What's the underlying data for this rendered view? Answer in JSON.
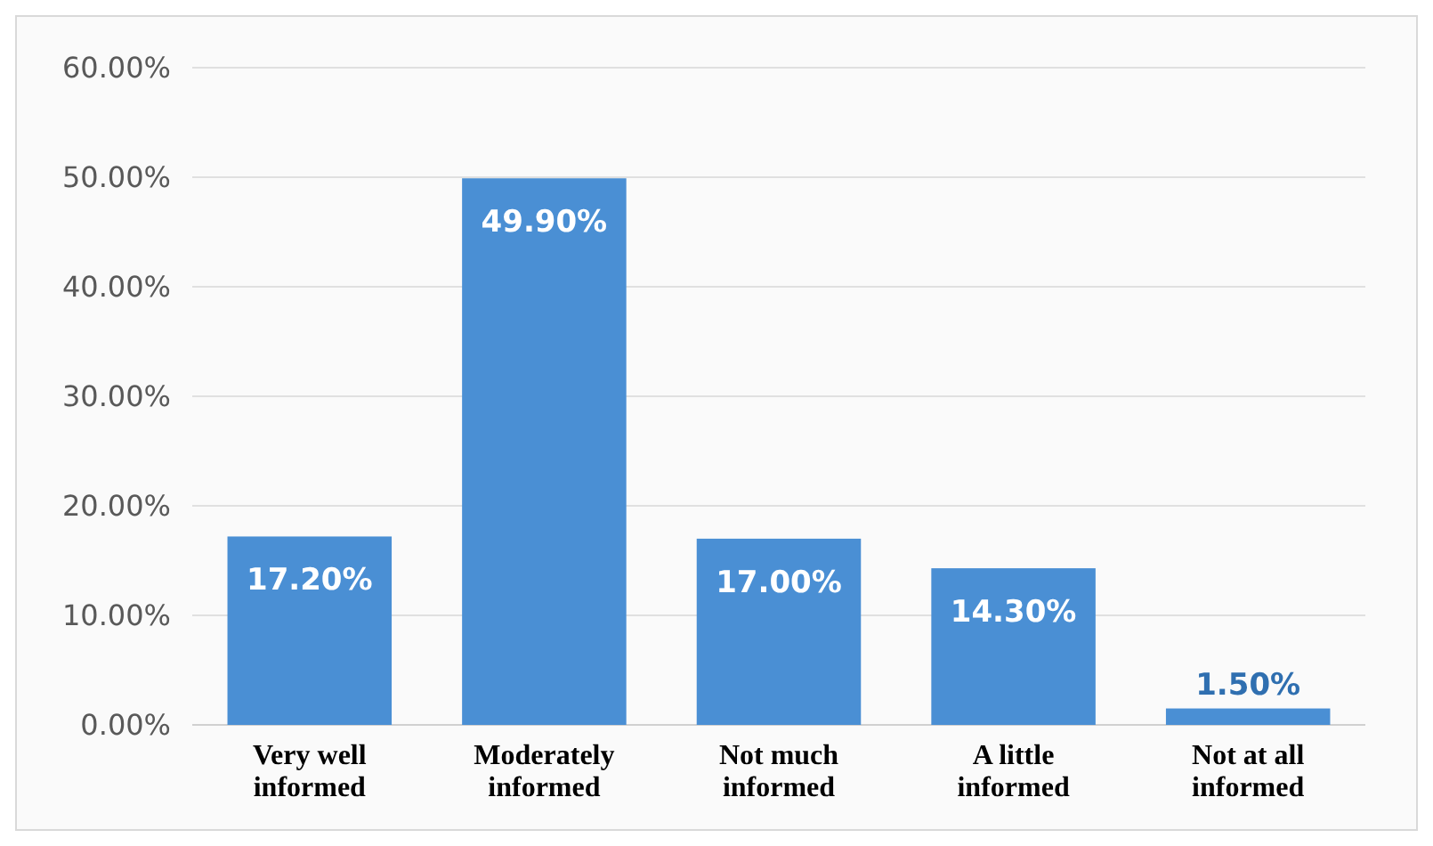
{
  "chart_data": {
    "type": "bar",
    "categories": [
      "Very well informed",
      "Moderately informed",
      "Not much informed",
      "A little informed",
      "Not at all informed"
    ],
    "values": [
      17.2,
      49.9,
      17.0,
      14.3,
      1.5
    ],
    "value_labels": [
      "17.20%",
      "49.90%",
      "17.00%",
      "14.30%",
      "1.50%"
    ],
    "color": "#4a8fd4",
    "ylim": [
      0,
      60
    ],
    "yticks": [
      {
        "value": 0,
        "label": "0.00%"
      },
      {
        "value": 10,
        "label": "10.00%"
      },
      {
        "value": 20,
        "label": "20.00%"
      },
      {
        "value": 30,
        "label": "30.00%"
      },
      {
        "value": 40,
        "label": "40.00%"
      },
      {
        "value": 50,
        "label": "50.00%"
      },
      {
        "value": 60,
        "label": "60.00%"
      }
    ],
    "grid": "y"
  }
}
